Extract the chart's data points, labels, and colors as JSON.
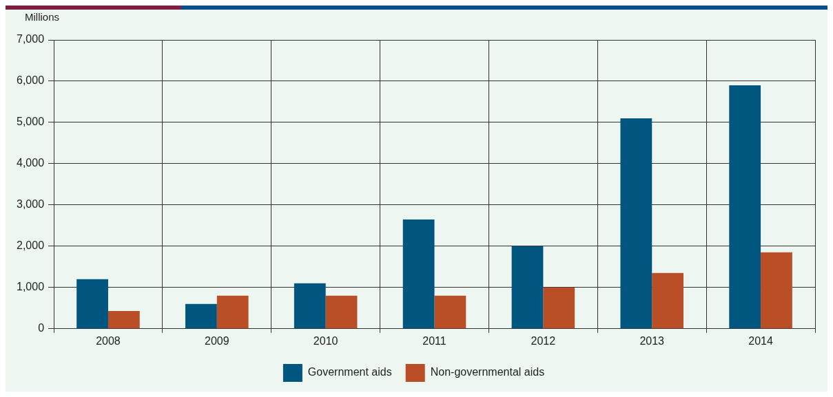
{
  "chart_data": {
    "type": "bar",
    "ylabel": "Millions",
    "categories": [
      "2008",
      "2009",
      "2010",
      "2011",
      "2012",
      "2013",
      "2014"
    ],
    "series": [
      {
        "name": "Government aids",
        "color": "#00567f",
        "values": [
          1200,
          600,
          1100,
          2650,
          2000,
          5100,
          5900
        ]
      },
      {
        "name": "Non-governmental aids",
        "color": "#b94e27",
        "values": [
          430,
          800,
          800,
          800,
          1000,
          1350,
          1850
        ]
      }
    ],
    "ylim": [
      0,
      7000
    ],
    "yticks": [
      {
        "value": 0,
        "label": "0"
      },
      {
        "value": 1000,
        "label": "1,000"
      },
      {
        "value": 2000,
        "label": "2,000"
      },
      {
        "value": 3000,
        "label": "3,000"
      },
      {
        "value": 4000,
        "label": "4,000"
      },
      {
        "value": 5000,
        "label": "5,000"
      },
      {
        "value": 6000,
        "label": "6,000"
      },
      {
        "value": 7000,
        "label": "7,000"
      }
    ],
    "grid": true,
    "legend": "bottom"
  }
}
